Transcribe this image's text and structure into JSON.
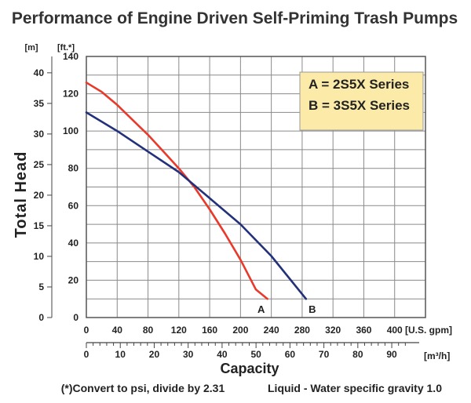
{
  "chart_data": {
    "type": "line",
    "title": "Performance of Engine Driven Self-Priming Trash Pumps",
    "ylabel": "Total Head",
    "xlabel": "Capacity",
    "primary_x_unit": "[U.S. gpm]",
    "secondary_x_unit": "[m³/h]",
    "left_y_unit": "[m]",
    "right_y_unit": "[ft.*]",
    "ft_ticks": [
      "0",
      "20",
      "40",
      "60",
      "80",
      "100",
      "120",
      "140"
    ],
    "m_ticks": [
      "0",
      "5",
      "10",
      "15",
      "20",
      "25",
      "30",
      "35",
      "40"
    ],
    "gpm_ticks": [
      "0",
      "40",
      "80",
      "120",
      "160",
      "200",
      "240",
      "280",
      "320",
      "360",
      "400"
    ],
    "m3h_ticks": [
      "0",
      "10",
      "20",
      "30",
      "40",
      "50",
      "60",
      "70",
      "80",
      "90"
    ],
    "xlim": [
      0,
      440
    ],
    "ylim": [
      0,
      140
    ],
    "legend": {
      "lines": [
        "A = 2S5X Series",
        "B = 3S5X Series"
      ],
      "placement": "top-right",
      "background": "#fbeaa8"
    },
    "series": [
      {
        "name": "A",
        "color": "#e8392b",
        "x": [
          0,
          20,
          40,
          60,
          80,
          100,
          120,
          140,
          160,
          180,
          200,
          220,
          235
        ],
        "y": [
          126,
          121,
          114,
          106,
          98,
          89,
          80,
          70,
          58,
          45,
          31,
          15,
          10
        ]
      },
      {
        "name": "B",
        "color": "#23307a",
        "x": [
          0,
          40,
          80,
          120,
          160,
          200,
          240,
          285
        ],
        "y": [
          110,
          100,
          89,
          78,
          64,
          50,
          33,
          10
        ]
      }
    ],
    "footnotes": [
      "(*)Convert to psi, divide by 2.31",
      "Liquid - Water specific gravity 1.0"
    ],
    "grid": true
  }
}
